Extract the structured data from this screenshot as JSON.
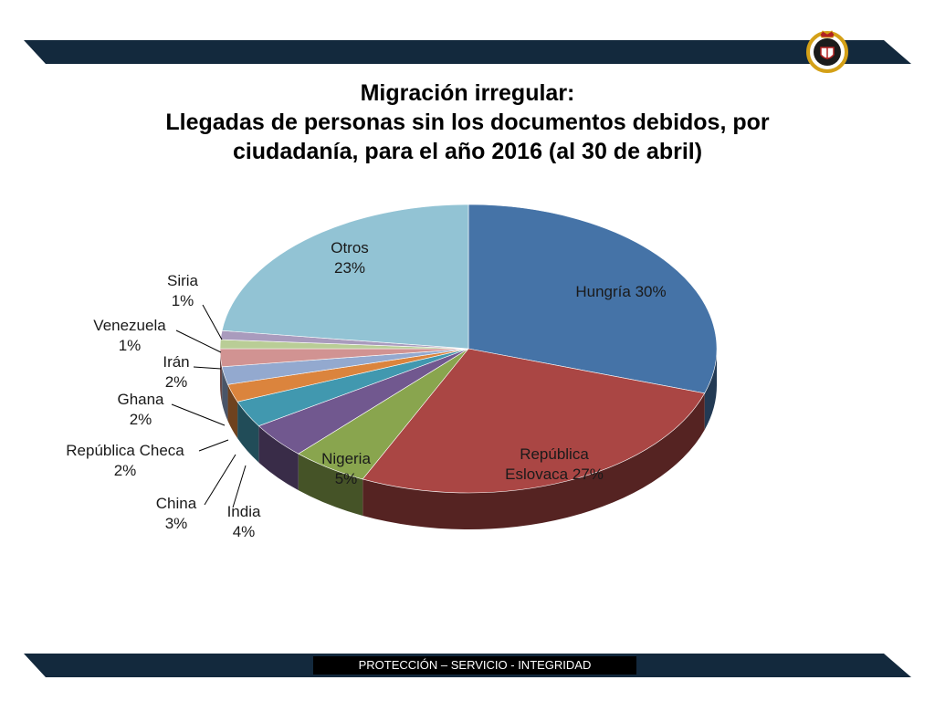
{
  "slide": {
    "title_lines": [
      "Migración irregular:",
      "Llegadas de personas sin los documentos debidos, por",
      "ciudadanía, para el año 2016 (al 30 de abril)"
    ],
    "footer_motto": "PROTECCIÓN – SERVICIO - INTEGRIDAD",
    "emblem_icon": "agency-crest-icon",
    "band_color": "#13293d"
  },
  "chart_data": {
    "type": "pie",
    "title": "Migración irregular: Llegadas de personas sin los documentos debidos, por ciudadanía, para el año 2016 (al 30 de abril)",
    "unit": "%",
    "slices": [
      {
        "label": "Hungría",
        "value": 30,
        "color": "#4573a7"
      },
      {
        "label": "República Eslovaca",
        "value": 27,
        "color": "#aa4644"
      },
      {
        "label": "Nigeria",
        "value": 5,
        "color": "#89a54e"
      },
      {
        "label": "India",
        "value": 4,
        "color": "#71588f"
      },
      {
        "label": "China",
        "value": 3,
        "color": "#4198af"
      },
      {
        "label": "República Checa",
        "value": 2,
        "color": "#db843d"
      },
      {
        "label": "Ghana",
        "value": 2,
        "color": "#93a9cf"
      },
      {
        "label": "Irán",
        "value": 2,
        "color": "#d19392"
      },
      {
        "label": "Venezuela",
        "value": 1,
        "color": "#b9cd96"
      },
      {
        "label": "Siria",
        "value": 1,
        "color": "#a99bbd"
      },
      {
        "label": "Otros",
        "value": 23,
        "color": "#92c3d4"
      }
    ],
    "data_labels": [
      {
        "lines": [
          "Hungría 30%"
        ]
      },
      {
        "lines": [
          "República",
          "Eslovaca 27%"
        ]
      },
      {
        "lines": [
          "Nigeria",
          "5%"
        ]
      },
      {
        "lines": [
          "India",
          "4%"
        ]
      },
      {
        "lines": [
          "China",
          "3%"
        ]
      },
      {
        "lines": [
          "República Checa",
          "2%"
        ]
      },
      {
        "lines": [
          "Ghana",
          "2%"
        ]
      },
      {
        "lines": [
          "Irán",
          "2%"
        ]
      },
      {
        "lines": [
          "Venezuela",
          "1%"
        ]
      },
      {
        "lines": [
          "Siria",
          "1%"
        ]
      },
      {
        "lines": [
          "Otros",
          "23%"
        ]
      }
    ],
    "legend": "none",
    "style": "3d-pie"
  }
}
